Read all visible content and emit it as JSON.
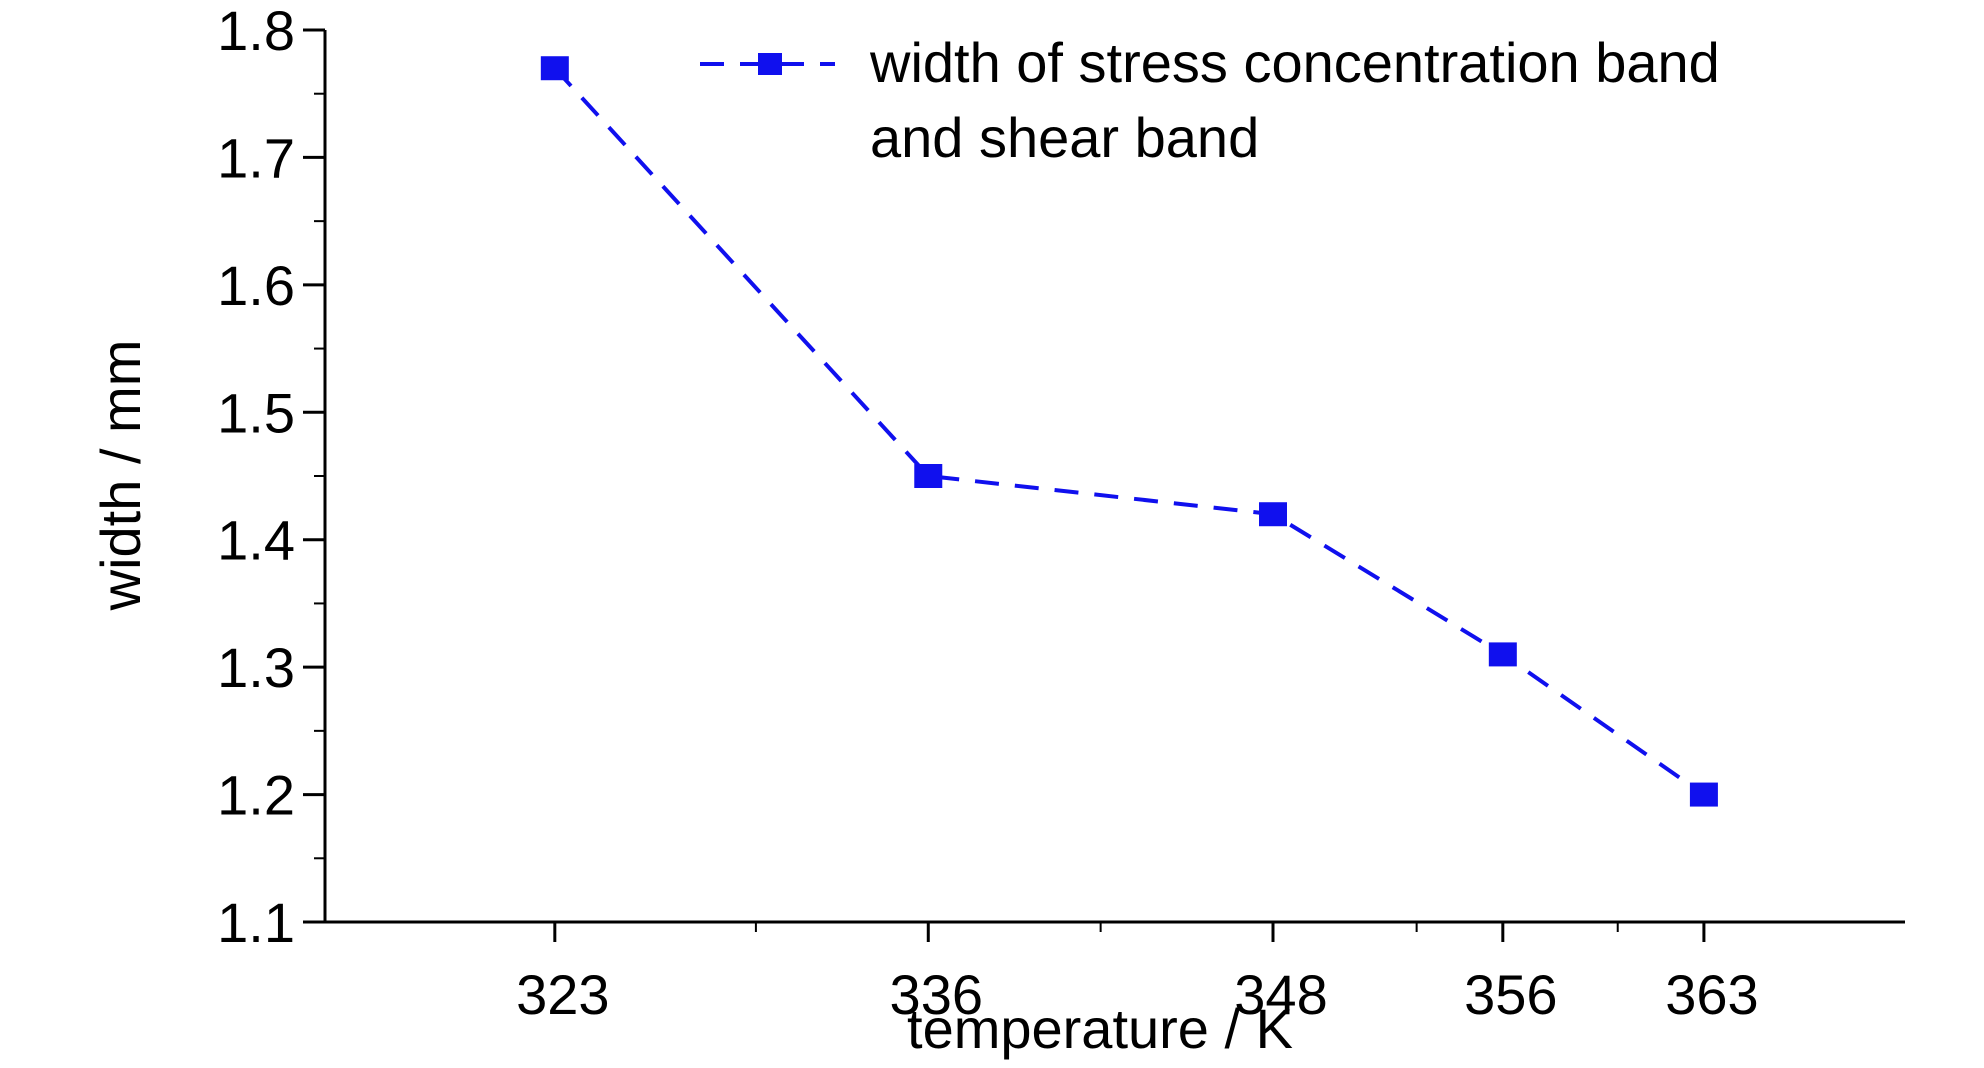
{
  "chart_data": {
    "type": "line",
    "categories": [
      "323",
      "336",
      "348",
      "356",
      "363"
    ],
    "x": [
      323,
      336,
      348,
      356,
      363
    ],
    "series": [
      {
        "name": "width of stress concentration band and shear band",
        "legend_lines": [
          "width of stress concentration band",
          "and shear band"
        ],
        "values": [
          1.77,
          1.45,
          1.42,
          1.31,
          1.2
        ],
        "color": "#1010ee",
        "line_style": "dashed",
        "marker": "square"
      }
    ],
    "xlabel": "temperature / K",
    "ylabel": "width / mm",
    "xlim": [
      315,
      370
    ],
    "ylim": [
      1.1,
      1.8
    ],
    "yticks": [
      1.1,
      1.2,
      1.3,
      1.4,
      1.5,
      1.6,
      1.7,
      1.8
    ],
    "ytick_labels": [
      "1.1",
      "1.2",
      "1.3",
      "1.4",
      "1.5",
      "1.6",
      "1.7",
      "1.8"
    ],
    "xticks": [
      323,
      336,
      348,
      356,
      363
    ],
    "xtick_labels": [
      "323",
      "336",
      "348",
      "356",
      "363"
    ],
    "x_minor_ticks": [
      330,
      342,
      353,
      360
    ],
    "grid": false,
    "legend_position": "top-right"
  }
}
